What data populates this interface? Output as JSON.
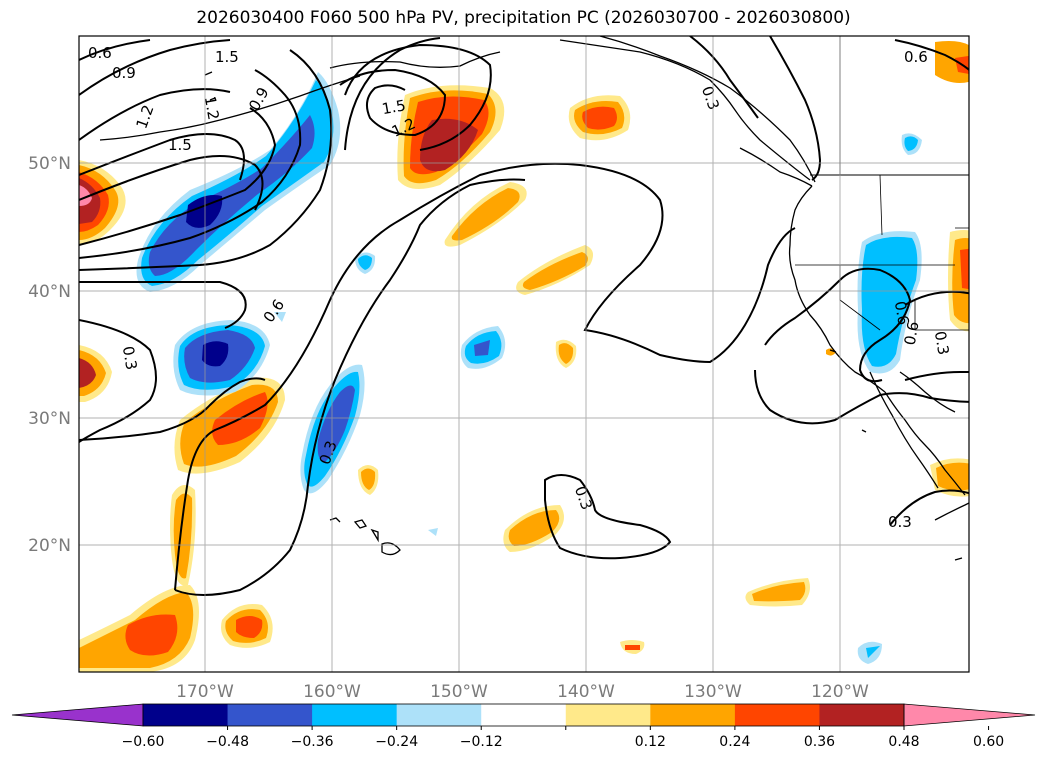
{
  "title": "2026030400 F060 500 hPa PV, precipitation PC (2026030700 - 2026030800)",
  "map": {
    "lat_labels": [
      "50°N",
      "40°N",
      "30°N",
      "20°N"
    ],
    "lon_labels": [
      "170°W",
      "160°W",
      "150°W",
      "140°W",
      "130°W",
      "120°W"
    ],
    "contour_labels": [
      "0.6",
      "0.9",
      "1.5",
      "1.2",
      "1.2",
      "0.9",
      "1.5",
      "1.2",
      "1.5",
      "0.3",
      "0.6",
      "0.3",
      "0.3",
      "0.3",
      "0.6",
      "0.6",
      "0.3",
      "0.6",
      "0.3"
    ]
  },
  "chart_data": {
    "type": "map",
    "title": "2026030400 F060 500 hPa PV, precipitation PC (2026030700 - 2026030800)",
    "variables": [
      "500 hPa PV (contours)",
      "precipitation PC (shaded)"
    ],
    "lon_range": [
      -180,
      -110
    ],
    "lat_range": [
      10,
      60
    ],
    "lat_ticks": [
      "50°N",
      "40°N",
      "30°N",
      "20°N"
    ],
    "lon_ticks": [
      "170°W",
      "160°W",
      "150°W",
      "140°W",
      "130°W",
      "120°W"
    ],
    "pv_contour_levels": [
      0.3,
      0.6,
      0.9,
      1.2,
      1.5
    ],
    "colorbar": {
      "ticks": [
        "−0.60",
        "−0.48",
        "−0.36",
        "−0.24",
        "−0.12",
        "0.12",
        "0.24",
        "0.36",
        "0.48",
        "0.60"
      ],
      "colors": [
        "#9932CC",
        "#00008B",
        "#3455CC",
        "#00BFFF",
        "#ADE1F9",
        "#FFFFFF",
        "#FFE98A",
        "#FFA500",
        "#FF4500",
        "#B22222",
        "#FF88AA"
      ],
      "extend": "both"
    }
  }
}
